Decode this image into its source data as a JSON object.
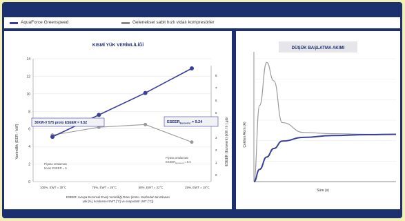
{
  "legend": {
    "items": [
      {
        "label": "AquaForce Greenspeed",
        "color": "#3b3f9a"
      },
      {
        "label": "Geleneksel sabit hızlı vidalı kompresörler",
        "color": "#8a8a8a"
      }
    ]
  },
  "colors": {
    "frame": "#1c2f6e",
    "background": "#f3f0b6",
    "series_primary": "#3b3f9a",
    "series_secondary": "#9a9a9a"
  },
  "chart_data": [
    {
      "type": "line",
      "title": "KISMİ YÜK VERİMLİLİĞİ",
      "ylabel": "Verimlilik (EER - kW)",
      "y2label": "ESEER (Eurovent) (kW / h ),gibi",
      "ylim": [
        0,
        14
      ],
      "y_ticks": [
        0,
        2,
        4,
        6,
        8,
        10,
        12,
        14
      ],
      "y2_ticks": [
        "0",
        "1",
        "2",
        "3",
        "4",
        "5",
        "6",
        "7",
        "8"
      ],
      "categories": [
        "100%, EWT = 30°C",
        "75%, EWT = 26°C",
        "50%, EWT = 22°C",
        "25%, EWT = 18°C"
      ],
      "series": [
        {
          "name": "AquaForce Greenspeed",
          "values": [
            5.1,
            7.6,
            10.1,
            12.9
          ]
        },
        {
          "name": "Geleneksel sabit hızlı vidalı kompresörler",
          "values": [
            5.3,
            6.2,
            6.5,
            4.5
          ]
        }
      ],
      "annotations": {
        "box_left": "30XW-V 575 proto ESEER = 9.52",
        "box_right_main": "ESEER",
        "box_right_sub": "Eurovent",
        "box_right_value": "= 9.24",
        "note1_line1": "Piyasa ortalaması",
        "note1_line2": "tavan ESEER = 6",
        "note2_line1": "Piyasa ortalaması",
        "note2_line2": "ESEER",
        "note2_sub": "Eurovent",
        "note2_value": "= 5.5",
        "footer_line1": "ESEER: Avrupa Sezonsal Enerji Verimliliği Oranı (kümü. tarafından tanımlanan",
        "footer_line2": "yük [%], kondenser EWT [°C] ve evaporatör LWT [°C])"
      },
      "grid": true
    },
    {
      "type": "line",
      "title": "DÜŞÜK BAŞLATMA AKIMI",
      "ylabel": "Çekilen Akım (A)",
      "xlabel": "Süre (s)",
      "series": [
        {
          "name": "Geleneksel sabit hızlı vidalı kompresörler",
          "values": [
            0,
            0.62,
            0.97,
            0.82,
            0.48,
            0.4,
            0.39,
            0.385,
            0.385
          ]
        },
        {
          "name": "AquaForce Greenspeed",
          "values": [
            0,
            0.1,
            0.2,
            0.27,
            0.33,
            0.36,
            0.375,
            0.382,
            0.385
          ]
        }
      ],
      "x": [
        0,
        0.04,
        0.09,
        0.14,
        0.2,
        0.35,
        0.55,
        0.8,
        1.0
      ],
      "grid": true
    }
  ]
}
